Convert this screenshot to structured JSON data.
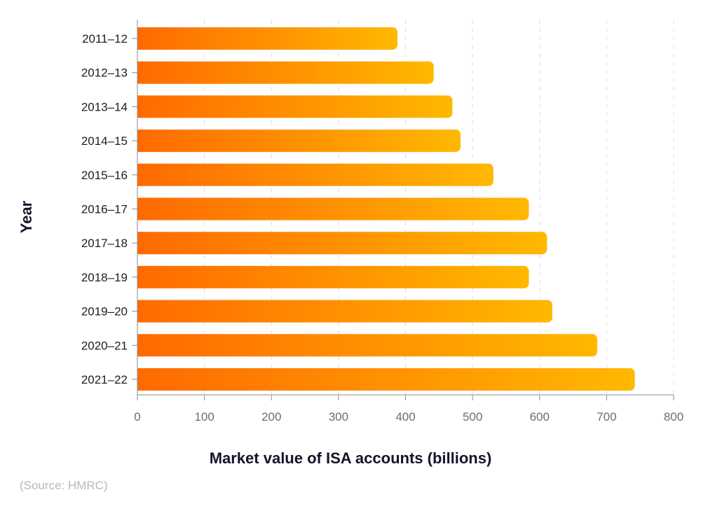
{
  "chart_data": {
    "type": "bar",
    "orientation": "horizontal",
    "categories": [
      "2011–12",
      "2012–13",
      "2013–14",
      "2014–15",
      "2015–16",
      "2016–17",
      "2017–18",
      "2018–19",
      "2019–20",
      "2020–21",
      "2021–22"
    ],
    "values": [
      388,
      442,
      470,
      482,
      531,
      584,
      611,
      584,
      619,
      686,
      742
    ],
    "xlabel": "Market value of ISA accounts (billions)",
    "ylabel": "Year",
    "xlim": [
      0,
      800
    ],
    "xticks": [
      "0",
      "100",
      "200",
      "300",
      "400",
      "500",
      "600",
      "700",
      "800"
    ],
    "grid": true,
    "colors": {
      "gradient_start": "#ff6a00",
      "gradient_end": "#ffb800",
      "axis": "#8a8a94",
      "grid": "#dcdce2"
    },
    "source": "(Source: HMRC)"
  }
}
